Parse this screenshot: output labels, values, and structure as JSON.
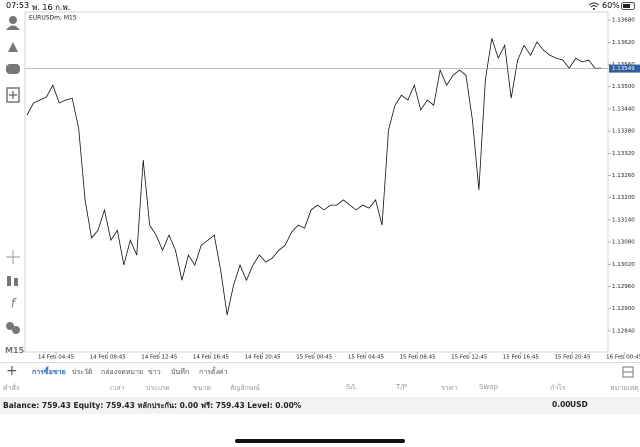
{
  "status_bar": {
    "time": "07:53",
    "date": "พ. 16 ก.พ.",
    "battery": "60%"
  },
  "chart": {
    "type": "line",
    "symbol": "EURUSDm, M15",
    "color": "#111111",
    "values": [
      1.13423,
      1.13456,
      1.13464,
      1.13472,
      1.13504,
      1.13456,
      1.13464,
      1.13469,
      1.13388,
      1.13194,
      1.13091,
      1.13112,
      1.13167,
      1.13085,
      1.13112,
      1.13018,
      1.13085,
      1.13045,
      1.13302,
      1.13126,
      1.13099,
      1.13058,
      1.13099,
      1.13058,
      1.12977,
      1.13045,
      1.13018,
      1.13072,
      1.13085,
      1.13099,
      1.13004,
      1.12883,
      1.12964,
      1.13018,
      1.12977,
      1.13018,
      1.13045,
      1.13026,
      1.13037,
      1.13058,
      1.13072,
      1.13107,
      1.13126,
      1.13118,
      1.13167,
      1.1318,
      1.13167,
      1.1318,
      1.1318,
      1.13194,
      1.1318,
      1.13167,
      1.1318,
      1.13172,
      1.13194,
      1.13126,
      1.13383,
      1.1345,
      1.13477,
      1.13464,
      1.13504,
      1.13437,
      1.13464,
      1.1345,
      1.13545,
      1.13504,
      1.13531,
      1.13545,
      1.13531,
      1.1341,
      1.13221,
      1.13518,
      1.13631,
      1.13577,
      1.13612,
      1.13469,
      1.13572,
      1.13612,
      1.13585,
      1.13621,
      1.13599,
      1.13585,
      1.13577,
      1.13572,
      1.1355,
      1.13577,
      1.13567,
      1.13572,
      1.1355,
      1.1355
    ],
    "xlim": [
      0,
      90
    ],
    "xticks": [
      {
        "value": 4.5,
        "label": "14 Feb 04:45"
      },
      {
        "value": 12.5,
        "label": "14 Feb 08:45"
      },
      {
        "value": 20.5,
        "label": "14 Feb 12:45"
      },
      {
        "value": 28.5,
        "label": "14 Feb 16:45"
      },
      {
        "value": 36.5,
        "label": "14 Feb 20:45"
      },
      {
        "value": 44.5,
        "label": "15 Feb 00:45"
      },
      {
        "value": 52.5,
        "label": "15 Feb 04:45"
      },
      {
        "value": 60.5,
        "label": "15 Feb 08:45"
      },
      {
        "value": 68.5,
        "label": "15 Feb 12:45"
      },
      {
        "value": 76.5,
        "label": "15 Feb 16:45"
      },
      {
        "value": 84.5,
        "label": "15 Feb 20:45"
      },
      {
        "value": 92.5,
        "label": "16 Feb 00:45"
      }
    ],
    "ylim": [
      1.12783,
      1.13702
    ],
    "yticks": [
      {
        "value": 1.1368,
        "label": "1.13680"
      },
      {
        "value": 1.1362,
        "label": "1.13620"
      },
      {
        "value": 1.1356,
        "label": "1.13560"
      },
      {
        "value": 1.135,
        "label": "1.13500"
      },
      {
        "value": 1.1344,
        "label": "1.13440"
      },
      {
        "value": 1.1338,
        "label": "1.13380"
      },
      {
        "value": 1.1332,
        "label": "1.13320"
      },
      {
        "value": 1.1326,
        "label": "1.13260"
      },
      {
        "value": 1.132,
        "label": "1.13200"
      },
      {
        "value": 1.1314,
        "label": "1.13140"
      },
      {
        "value": 1.1308,
        "label": "1.13080"
      },
      {
        "value": 1.1302,
        "label": "1.13020"
      },
      {
        "value": 1.1296,
        "label": "1.12960"
      },
      {
        "value": 1.129,
        "label": "1.12900"
      },
      {
        "value": 1.1284,
        "label": "1.12840"
      }
    ],
    "current_price": 1.13549
  },
  "timeframe": "M15",
  "tabs": [
    "การซื้อขาย",
    "ประวัติ",
    "กล่องจดหมาย",
    "ข่าว",
    "บันทึก",
    "การตั้งค่า"
  ],
  "columns": [
    "คำสั่ง",
    "เวลา",
    "ประเภท",
    "ขนาด",
    "สัญลักษณ์",
    "S/L",
    "T/P",
    "ราคา",
    "Swap",
    "กำไร",
    "หมายเหตุ"
  ],
  "balance_line": "Balance: 759.43 Equity: 759.43 หลักประกัน: 0.00 ฟรี: 759.43 Level: 0.00%",
  "total_profit": "0.00",
  "currency": "USD"
}
